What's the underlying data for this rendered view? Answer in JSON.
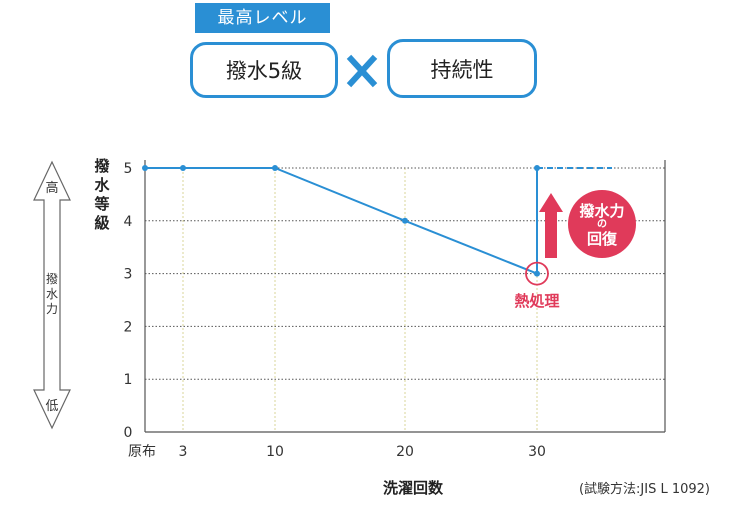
{
  "header": {
    "badge": "最高レベル",
    "left_box": "撥水5級",
    "operator": "✕",
    "right_box": "持続性"
  },
  "colors": {
    "primary": "#2a8fd4",
    "accent": "#e03a5a",
    "grid": "#555555",
    "vgrid": "#d8d49a"
  },
  "scale_arrow": {
    "top": "高",
    "middle": "撥水力",
    "bottom": "低"
  },
  "chart_data": {
    "type": "line",
    "ylabel": "撥水等級",
    "xlabel": "洗濯回数",
    "ylim": [
      0,
      5
    ],
    "y_ticks": [
      "0",
      "1",
      "2",
      "3",
      "4",
      "5"
    ],
    "x_categories": [
      "原布",
      "3",
      "10",
      "20",
      "30"
    ],
    "series": [
      {
        "x": [
          "原布",
          "3",
          "10",
          "20",
          "30"
        ],
        "y": [
          5,
          5,
          5,
          4,
          3
        ]
      }
    ],
    "recovery": {
      "x": "30",
      "from": 3,
      "to": 5,
      "label_lines": [
        "撥水力",
        "の",
        "回復"
      ]
    },
    "annotation": "熱処理",
    "note": "(試験方法:JIS L 1092)"
  }
}
